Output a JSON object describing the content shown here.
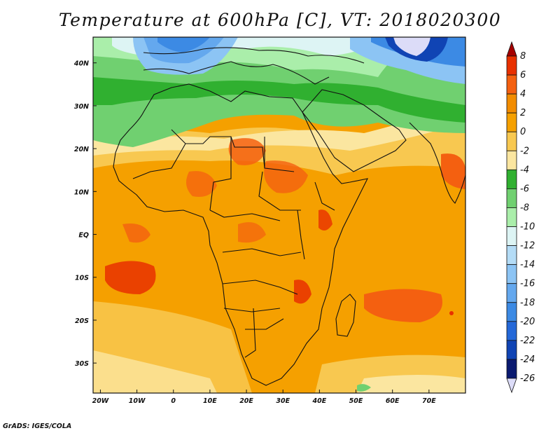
{
  "title": "Temperature at 600hPa [C], VT: 2018020300",
  "credit": "GrADS: IGES/COLA",
  "map": {
    "region": "Africa",
    "lon_range": [
      -22,
      80
    ],
    "lat_range": [
      -37,
      46
    ],
    "lon_ticks": [
      "20W",
      "10W",
      "0",
      "10E",
      "20E",
      "30E",
      "40E",
      "50E",
      "60E",
      "70E"
    ],
    "lon_tick_values": [
      -20,
      -10,
      0,
      10,
      20,
      30,
      40,
      50,
      60,
      70
    ],
    "lat_ticks": [
      "40N",
      "30N",
      "20N",
      "10N",
      "EQ",
      "10S",
      "20S",
      "30S"
    ],
    "lat_tick_values": [
      40,
      30,
      20,
      10,
      0,
      -10,
      -20,
      -30
    ],
    "variable": "Temperature",
    "level": "600hPa",
    "units": "C",
    "valid_time": "2018020300"
  },
  "colorbar": {
    "labels": [
      "8",
      "6",
      "4",
      "2",
      "0",
      "-2",
      "-4",
      "-6",
      "-8",
      "-10",
      "-12",
      "-14",
      "-16",
      "-18",
      "-20",
      "-22",
      "-24",
      "-26"
    ],
    "colors": [
      "#a50000",
      "#e83000",
      "#f46010",
      "#f28c00",
      "#f5a000",
      "#f8c850",
      "#fbe6a0",
      "#30b030",
      "#70d070",
      "#aaeeaa",
      "#ddf4f4",
      "#b4dcf6",
      "#8cc4f4",
      "#64a8ee",
      "#3c8ae4",
      "#2468d8",
      "#1044b4",
      "#0a1a70",
      "#dcdcf8"
    ]
  }
}
